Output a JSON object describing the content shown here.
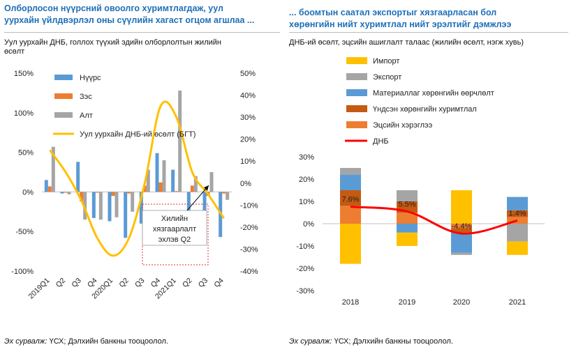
{
  "left": {
    "title_line1": "Олборлосон нүүрсний овоолго хуримтлагдаж, уул",
    "title_line2": "уурхайн үйлдвэрлэл оны сүүлийн хагаст огцом агшлаа ...",
    "subtitle_line1": "Уул уурхайн ДНБ, голлох түүхий эдийн олборлолтын жилийн",
    "subtitle_line2": "өсөлт",
    "annotation_lines": [
      "Хилийн",
      "хязгаарлалт",
      "эхлэв Q2"
    ],
    "source_label": "Эх сурвалж:",
    "source_text": "ҮСХ; Дэлхийн банкны тооцоолол."
  },
  "right": {
    "title_line1": "...  боомтын саатал экспортыг хязгаарласан бол",
    "title_line2": "хөрөнгийн нийт хуримтлал нийт эрэлтийг дэмжлээ",
    "subtitle": "ДНБ-ий өсөлт, эцсийн ашиглалт талаас (жилийн өсөлт, нэгж хувь)",
    "source_label": "Эх сурвалж:",
    "source_text": "ҮСХ; Дэлхийн банкны тооцоолол."
  },
  "chart_data": [
    {
      "type": "bar",
      "categories": [
        "2019Q1",
        "Q2",
        "Q3",
        "Q4",
        "2020Q1",
        "Q2",
        "Q3",
        "Q4",
        "2021Q1",
        "Q2",
        "Q3",
        "Q4"
      ],
      "y_left_ticks": [
        "150%",
        "100%",
        "50%",
        "0%",
        "-50%",
        "-100%"
      ],
      "y_left_range": [
        -100,
        150
      ],
      "y_right_ticks": [
        "50%",
        "40%",
        "30%",
        "20%",
        "10%",
        "0%",
        "-10%",
        "-20%",
        "-30%",
        "-40%"
      ],
      "y_right_range": [
        -40,
        50
      ],
      "legend_placement": "top-left",
      "series": [
        {
          "name": "Нүүрс",
          "color": "#5b9bd5",
          "axis": "left",
          "values": [
            15,
            -2,
            38,
            -33,
            -37,
            -58,
            -40,
            49,
            28,
            -25,
            -58,
            -57
          ]
        },
        {
          "name": "Зэс",
          "color": "#ed7d31",
          "axis": "left",
          "values": [
            7,
            -1,
            -12,
            -1,
            -5,
            -2,
            8,
            12,
            1,
            8,
            -5,
            -2
          ]
        },
        {
          "name": "Алт",
          "color": "#a5a5a5",
          "axis": "left",
          "values": [
            57,
            -3,
            -35,
            -35,
            -32,
            -25,
            28,
            40,
            128,
            20,
            25,
            -10
          ]
        },
        {
          "name": "Уул уурхайн ДНБ-ий өсөлт (БГТ)",
          "color": "#ffc000",
          "axis": "right",
          "type": "line",
          "values": [
            15,
            5,
            -8,
            -25,
            -33,
            -25,
            0,
            35,
            30,
            5,
            -5,
            -16
          ]
        }
      ]
    },
    {
      "type": "bar",
      "stacked": true,
      "categories": [
        "2018",
        "2019",
        "2020",
        "2021"
      ],
      "y_ticks": [
        "30%",
        "20%",
        "10%",
        "0%",
        "-10%",
        "-20%",
        "-30%"
      ],
      "ylim": [
        -30,
        30
      ],
      "legend_placement": "top-left",
      "series": [
        {
          "name": "Импорт",
          "color": "#ffc000",
          "values": [
            -18,
            -6,
            15,
            -6
          ]
        },
        {
          "name": "Экспорт",
          "color": "#a5a5a5",
          "values": [
            3,
            5,
            -1,
            -8
          ]
        },
        {
          "name": "Материаллаг хөрөнгийн өөрчлөлт",
          "color": "#5b9bd5",
          "values": [
            7,
            -4,
            -9,
            6
          ]
        },
        {
          "name": "Үндсэн хөрөнгийн хуримтлал",
          "color": "#c55a11",
          "values": [
            7,
            5,
            -2,
            3
          ]
        },
        {
          "name": "Эцсийн хэрэглээ",
          "color": "#ed7d31",
          "values": [
            8,
            5,
            -2,
            3
          ]
        },
        {
          "name": "ДНБ",
          "color": "#ff0000",
          "type": "line",
          "values": [
            7.6,
            5.5,
            -4.4,
            1.4
          ],
          "labels": [
            "7.6%",
            "5.5%",
            "-4.4%",
            "1.4%"
          ]
        }
      ]
    }
  ]
}
